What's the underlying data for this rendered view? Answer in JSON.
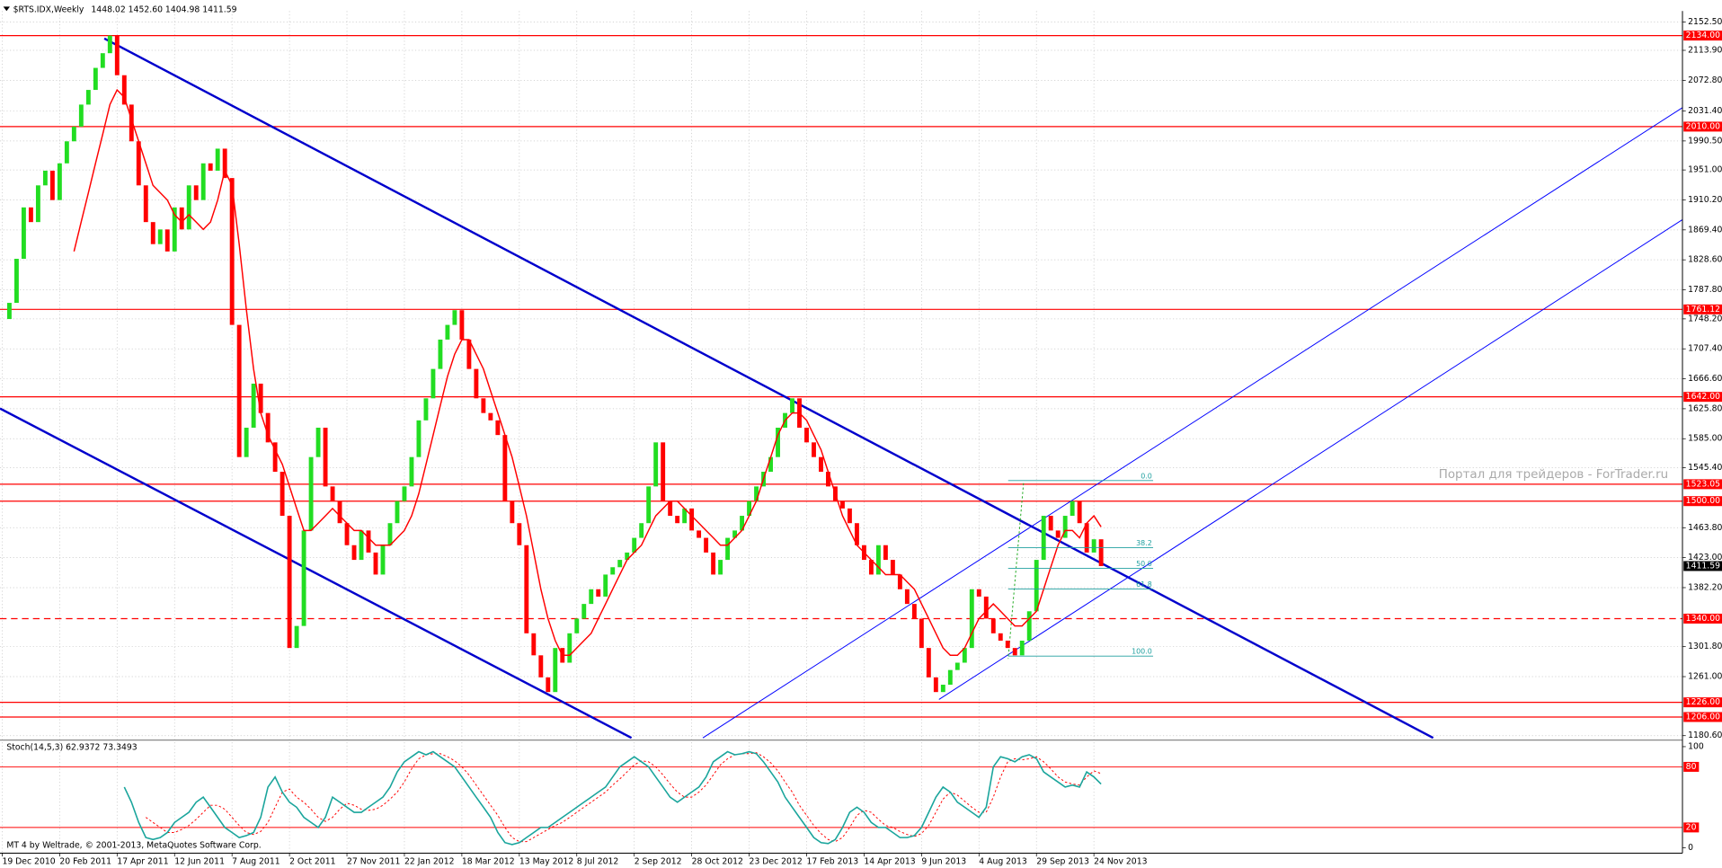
{
  "chart_data": {
    "type": "candlestick",
    "title": "$RTS.IDX,Weekly",
    "ohlc": "1448.02 1452.60 1404.98 1411.59",
    "categories": [
      "19 Dec 2010",
      null,
      null,
      null,
      null,
      null,
      null,
      null,
      "20 Feb 2011",
      null,
      null,
      null,
      null,
      null,
      null,
      null,
      "17 Apr 2011",
      null,
      null,
      null,
      null,
      null,
      null,
      null,
      "12 Jun 2011",
      null,
      null,
      null,
      null,
      null,
      null,
      null,
      "7 Aug 2011",
      null,
      null,
      null,
      null,
      null,
      null,
      null,
      "2 Oct 2011",
      null,
      null,
      null,
      null,
      null,
      null,
      null,
      "27 Nov 2011",
      null,
      null,
      null,
      null,
      null,
      null,
      null,
      "22 Jan 2012",
      null,
      null,
      null,
      null,
      null,
      null,
      null,
      "18 Mar 2012",
      null,
      null,
      null,
      null,
      null,
      null,
      null,
      "13 May 2012",
      null,
      null,
      null,
      null,
      null,
      null,
      null,
      "8 Jul 2012",
      null,
      null,
      null,
      null,
      null,
      null,
      null,
      "2 Sep 2012",
      null,
      null,
      null,
      null,
      null,
      null,
      null,
      "28 Oct 2012",
      null,
      null,
      null,
      null,
      null,
      null,
      null,
      "23 Dec 2012",
      null,
      null,
      null,
      null,
      null,
      null,
      null,
      "17 Feb 2013",
      null,
      null,
      null,
      null,
      null,
      null,
      null,
      "14 Apr 2013",
      null,
      null,
      null,
      null,
      null,
      null,
      null,
      "9 Jun 2013",
      null,
      null,
      null,
      null,
      null,
      null,
      null,
      "4 Aug 2013",
      null,
      null,
      null,
      null,
      null,
      null,
      null,
      "29 Sep 2013",
      null,
      null,
      null,
      null,
      null,
      null,
      null,
      "24 Nov 2013",
      null
    ],
    "close": [
      1748,
      1770,
      1830,
      1900,
      1880,
      1930,
      1950,
      1910,
      1960,
      1990,
      2010,
      2040,
      2060,
      2090,
      2110,
      2134,
      2080,
      2040,
      1990,
      1930,
      1880,
      1850,
      1870,
      1840,
      1900,
      1870,
      1930,
      1910,
      1960,
      1950,
      1980,
      1940,
      1740,
      1560,
      1600,
      1660,
      1620,
      1580,
      1540,
      1480,
      1300,
      1330,
      1460,
      1560,
      1600,
      1520,
      1500,
      1470,
      1440,
      1420,
      1460,
      1430,
      1400,
      1440,
      1470,
      1500,
      1520,
      1560,
      1610,
      1640,
      1680,
      1720,
      1740,
      1760,
      1720,
      1680,
      1640,
      1620,
      1610,
      1590,
      1500,
      1470,
      1440,
      1320,
      1290,
      1260,
      1240,
      1300,
      1280,
      1320,
      1340,
      1360,
      1380,
      1370,
      1400,
      1410,
      1420,
      1430,
      1450,
      1470,
      1520,
      1580,
      1500,
      1480,
      1470,
      1490,
      1460,
      1450,
      1430,
      1400,
      1420,
      1450,
      1460,
      1480,
      1500,
      1520,
      1540,
      1560,
      1600,
      1620,
      1640,
      1600,
      1580,
      1560,
      1540,
      1520,
      1500,
      1490,
      1470,
      1440,
      1420,
      1400,
      1440,
      1420,
      1400,
      1380,
      1360,
      1340,
      1300,
      1260,
      1240,
      1250,
      1270,
      1280,
      1300,
      1380,
      1370,
      1340,
      1320,
      1310,
      1300,
      1290,
      1310,
      1350,
      1420,
      1480,
      1460,
      1450,
      1480,
      1500,
      1470,
      1430,
      1448.02,
      1411.59
    ],
    "ma": [
      null,
      null,
      null,
      null,
      null,
      null,
      null,
      null,
      null,
      null,
      1840,
      1880,
      1920,
      1960,
      2000,
      2040,
      2060,
      2050,
      2020,
      1990,
      1960,
      1930,
      1920,
      1910,
      1890,
      1880,
      1890,
      1880,
      1870,
      1880,
      1910,
      1950,
      1930,
      1850,
      1760,
      1680,
      1620,
      1590,
      1570,
      1550,
      1520,
      1490,
      1460,
      1460,
      1470,
      1480,
      1490,
      1480,
      1470,
      1460,
      1460,
      1450,
      1440,
      1440,
      1440,
      1450,
      1460,
      1480,
      1510,
      1550,
      1590,
      1630,
      1670,
      1700,
      1720,
      1720,
      1700,
      1680,
      1650,
      1620,
      1590,
      1560,
      1520,
      1480,
      1430,
      1380,
      1340,
      1310,
      1290,
      1290,
      1300,
      1310,
      1320,
      1340,
      1360,
      1380,
      1400,
      1420,
      1430,
      1440,
      1460,
      1480,
      1490,
      1500,
      1500,
      1490,
      1480,
      1470,
      1460,
      1450,
      1440,
      1440,
      1450,
      1460,
      1480,
      1500,
      1530,
      1560,
      1590,
      1610,
      1620,
      1620,
      1610,
      1590,
      1570,
      1540,
      1510,
      1480,
      1460,
      1440,
      1430,
      1420,
      1410,
      1400,
      1400,
      1400,
      1390,
      1380,
      1360,
      1340,
      1320,
      1300,
      1290,
      1290,
      1300,
      1320,
      1340,
      1350,
      1360,
      1350,
      1340,
      1330,
      1330,
      1340,
      1350,
      1380,
      1410,
      1440,
      1460,
      1460,
      1450,
      1470,
      1480,
      1465
    ],
    "bull_color": "#22dd22",
    "bear_color": "#ff0000",
    "ma_color": "#ff0000",
    "ylim": [
      1180.6,
      2152.5
    ],
    "yticks": [
      {
        "value": 2152.5,
        "label": "2152.50"
      },
      {
        "value": 2113.9,
        "label": "2113.90"
      },
      {
        "value": 2072.8,
        "label": "2072.80"
      },
      {
        "value": 2031.4,
        "label": "2031.40"
      },
      {
        "value": 1990.5,
        "label": "1990.50"
      },
      {
        "value": 1951,
        "label": "1951.00"
      },
      {
        "value": 1910.2,
        "label": "1910.20"
      },
      {
        "value": 1869.4,
        "label": "1869.40"
      },
      {
        "value": 1828.6,
        "label": "1828.60"
      },
      {
        "value": 1787.8,
        "label": "1787.80"
      },
      {
        "value": 1748.2,
        "label": "1748.20"
      },
      {
        "value": 1707.4,
        "label": "1707.40"
      },
      {
        "value": 1666.6,
        "label": "1666.60"
      },
      {
        "value": 1625.8,
        "label": "1625.80"
      },
      {
        "value": 1585,
        "label": "1585.00"
      },
      {
        "value": 1545.4,
        "label": "1545.40"
      },
      {
        "value": 1463.8,
        "label": "1463.80"
      },
      {
        "value": 1423,
        "label": "1423.00"
      },
      {
        "value": 1382.2,
        "label": "1382.20"
      },
      {
        "value": 1301.8,
        "label": "1301.80"
      },
      {
        "value": 1261,
        "label": "1261.00"
      },
      {
        "value": 1180.6,
        "label": "1180.60"
      }
    ],
    "levels": [
      {
        "value": 2134,
        "label": "2134.00"
      },
      {
        "value": 2010,
        "label": "2010.00"
      },
      {
        "value": 1761.12,
        "label": "1761.12"
      },
      {
        "value": 1642,
        "label": "1642.00"
      },
      {
        "value": 1523.05,
        "label": "1523.05"
      },
      {
        "value": 1500,
        "label": "1500.00"
      },
      {
        "value": 1340,
        "label": "1340.00",
        "dashed": true
      },
      {
        "value": 1226,
        "label": "1226.00"
      },
      {
        "value": 1206,
        "label": "1206.00"
      }
    ],
    "last_price": {
      "value": 1411.59,
      "label": "1411.59"
    },
    "fibo_range": [
      1528,
      1289
    ],
    "fibo": [
      {
        "value": 0,
        "label": "0.0"
      },
      {
        "value": 38.2,
        "label": "38.2"
      },
      {
        "value": 50,
        "label": "50.0"
      },
      {
        "value": 61.8,
        "label": "61.8"
      },
      {
        "value": 100,
        "label": "100.0"
      }
    ],
    "watermark": "Портал для трейдеров - ForTrader.ru",
    "footer": "MT 4 by Weltrade, © 2001-2013, MetaQuotes Software Corp.",
    "stoch": {
      "title": "Stoch(14,5,3) 62.9372 73.3493",
      "main_color": "#1aa59c",
      "signal_color": "#ff0000",
      "ylim": [
        0,
        100
      ],
      "yticks": [
        0,
        100
      ],
      "levels": [
        80,
        20
      ],
      "main": [
        null,
        null,
        null,
        null,
        null,
        null,
        null,
        null,
        null,
        null,
        null,
        null,
        null,
        null,
        null,
        null,
        null,
        60,
        45,
        25,
        10,
        8,
        10,
        15,
        25,
        30,
        35,
        45,
        50,
        40,
        30,
        20,
        15,
        10,
        12,
        15,
        30,
        60,
        70,
        55,
        45,
        40,
        30,
        25,
        20,
        30,
        50,
        45,
        40,
        35,
        35,
        40,
        45,
        50,
        60,
        75,
        85,
        90,
        95,
        92,
        95,
        90,
        85,
        80,
        70,
        60,
        50,
        40,
        30,
        15,
        5,
        3,
        5,
        10,
        15,
        20,
        20,
        25,
        30,
        35,
        40,
        45,
        50,
        55,
        60,
        70,
        80,
        85,
        90,
        85,
        80,
        70,
        60,
        50,
        45,
        50,
        55,
        60,
        70,
        85,
        90,
        95,
        92,
        93,
        95,
        93,
        85,
        75,
        65,
        50,
        40,
        30,
        20,
        10,
        5,
        4,
        8,
        20,
        35,
        40,
        35,
        25,
        20,
        20,
        15,
        10,
        10,
        12,
        20,
        35,
        50,
        60,
        55,
        45,
        40,
        35,
        30,
        40,
        80,
        90,
        88,
        85,
        90,
        92,
        88,
        75,
        70,
        65,
        60,
        62,
        60,
        75,
        70,
        62.9372
      ],
      "signal": [
        null,
        null,
        null,
        null,
        null,
        null,
        null,
        null,
        null,
        null,
        null,
        null,
        null,
        null,
        null,
        null,
        null,
        null,
        null,
        null,
        30,
        25,
        20,
        15,
        15,
        18,
        22,
        28,
        35,
        42,
        42,
        38,
        30,
        22,
        15,
        13,
        16,
        25,
        40,
        55,
        58,
        50,
        45,
        38,
        30,
        26,
        30,
        38,
        44,
        42,
        38,
        37,
        38,
        42,
        48,
        55,
        65,
        78,
        88,
        92,
        93,
        93,
        90,
        86,
        80,
        72,
        62,
        52,
        42,
        32,
        20,
        10,
        6,
        6,
        10,
        14,
        18,
        22,
        25,
        30,
        35,
        40,
        45,
        50,
        55,
        62,
        68,
        75,
        82,
        86,
        85,
        80,
        72,
        63,
        55,
        50,
        50,
        55,
        62,
        72,
        82,
        88,
        92,
        93,
        93,
        94,
        90,
        84,
        76,
        65,
        55,
        42,
        32,
        22,
        14,
        8,
        6,
        10,
        20,
        32,
        37,
        35,
        28,
        22,
        20,
        16,
        13,
        11,
        14,
        22,
        35,
        48,
        55,
        52,
        46,
        40,
        35,
        35,
        50,
        70,
        85,
        88,
        87,
        88,
        90,
        85,
        78,
        70,
        65,
        63,
        62,
        70,
        76,
        73.3493
      ]
    }
  }
}
